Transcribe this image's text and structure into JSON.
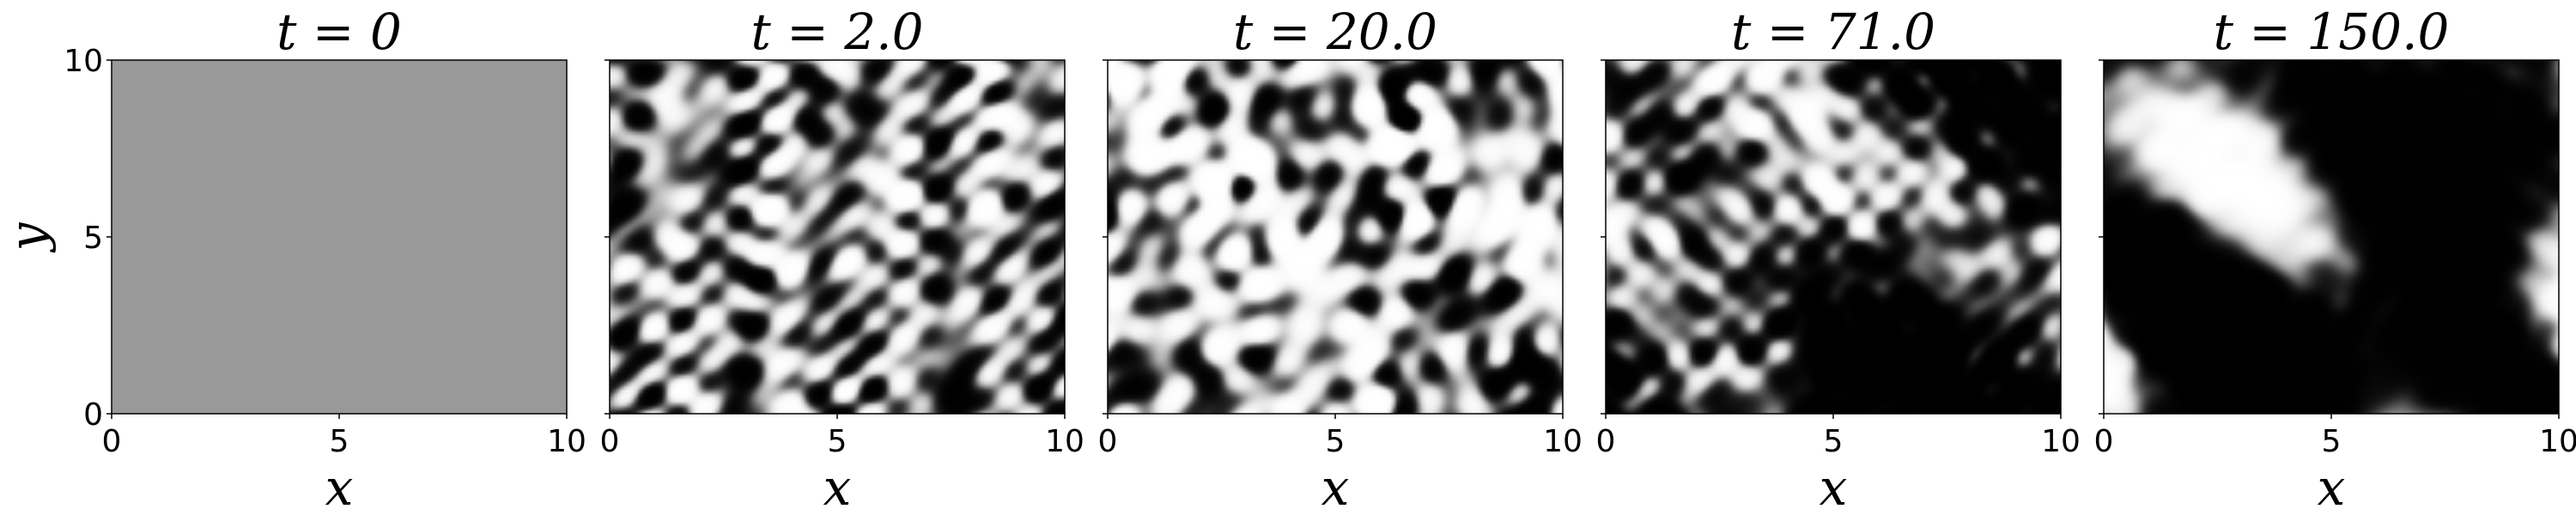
{
  "chart_data": {
    "type": "heatmap",
    "colormap": "grayscale",
    "xlim": [
      0,
      10
    ],
    "ylim": [
      0,
      10
    ],
    "xticks": [
      "0",
      "5",
      "10"
    ],
    "yticks": [
      "0",
      "5",
      "10"
    ],
    "xlabel": "x",
    "ylabel": "y",
    "panels": [
      {
        "t_label": "t",
        "t_value": "0",
        "field": "uniform",
        "uniform_gray": "#999999",
        "phase": 0.0
      },
      {
        "t_label": "t",
        "t_value": "2.0",
        "field": "noise",
        "phase": 0.15
      },
      {
        "t_label": "t",
        "t_value": "20.0",
        "field": "noise",
        "phase": 0.45
      },
      {
        "t_label": "t",
        "t_value": "71.0",
        "field": "noise",
        "phase": 0.75
      },
      {
        "t_label": "t",
        "t_value": "150.0",
        "field": "noise",
        "phase": 0.9
      }
    ]
  }
}
